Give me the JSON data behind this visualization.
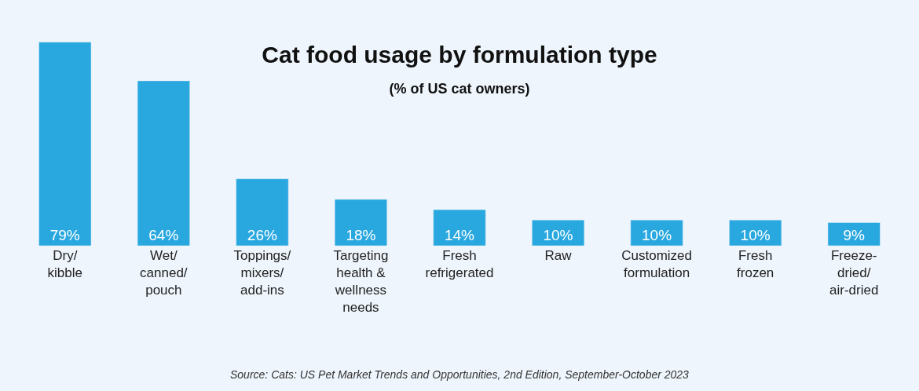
{
  "chart_data": {
    "type": "bar",
    "title": "Cat food usage by formulation type",
    "subtitle": "(% of US cat owners)",
    "categories": [
      "Dry/\nkibble",
      "Wet/\ncanned/\npouch",
      "Toppings/\nmixers/\nadd-ins",
      "Targeting\nhealth &\nwellness\nneeds",
      "Fresh\nrefrigerated",
      "Raw",
      "Customized\nformulation",
      "Fresh\nfrozen",
      "Freeze-\ndried/\nair-dried"
    ],
    "values": [
      79,
      64,
      26,
      18,
      14,
      10,
      10,
      10,
      9
    ],
    "color": "#29a8e0",
    "data_labels": true,
    "value_labels": [
      "79%",
      "64%",
      "26%",
      "18%",
      "14%",
      "10%",
      "10%",
      "10%",
      "9%"
    ],
    "grid": false,
    "legend": false,
    "annotations": [
      "Source: Cats: US Pet Market Trends and Opportunities, 2nd Edition, September-October 2023"
    ]
  }
}
